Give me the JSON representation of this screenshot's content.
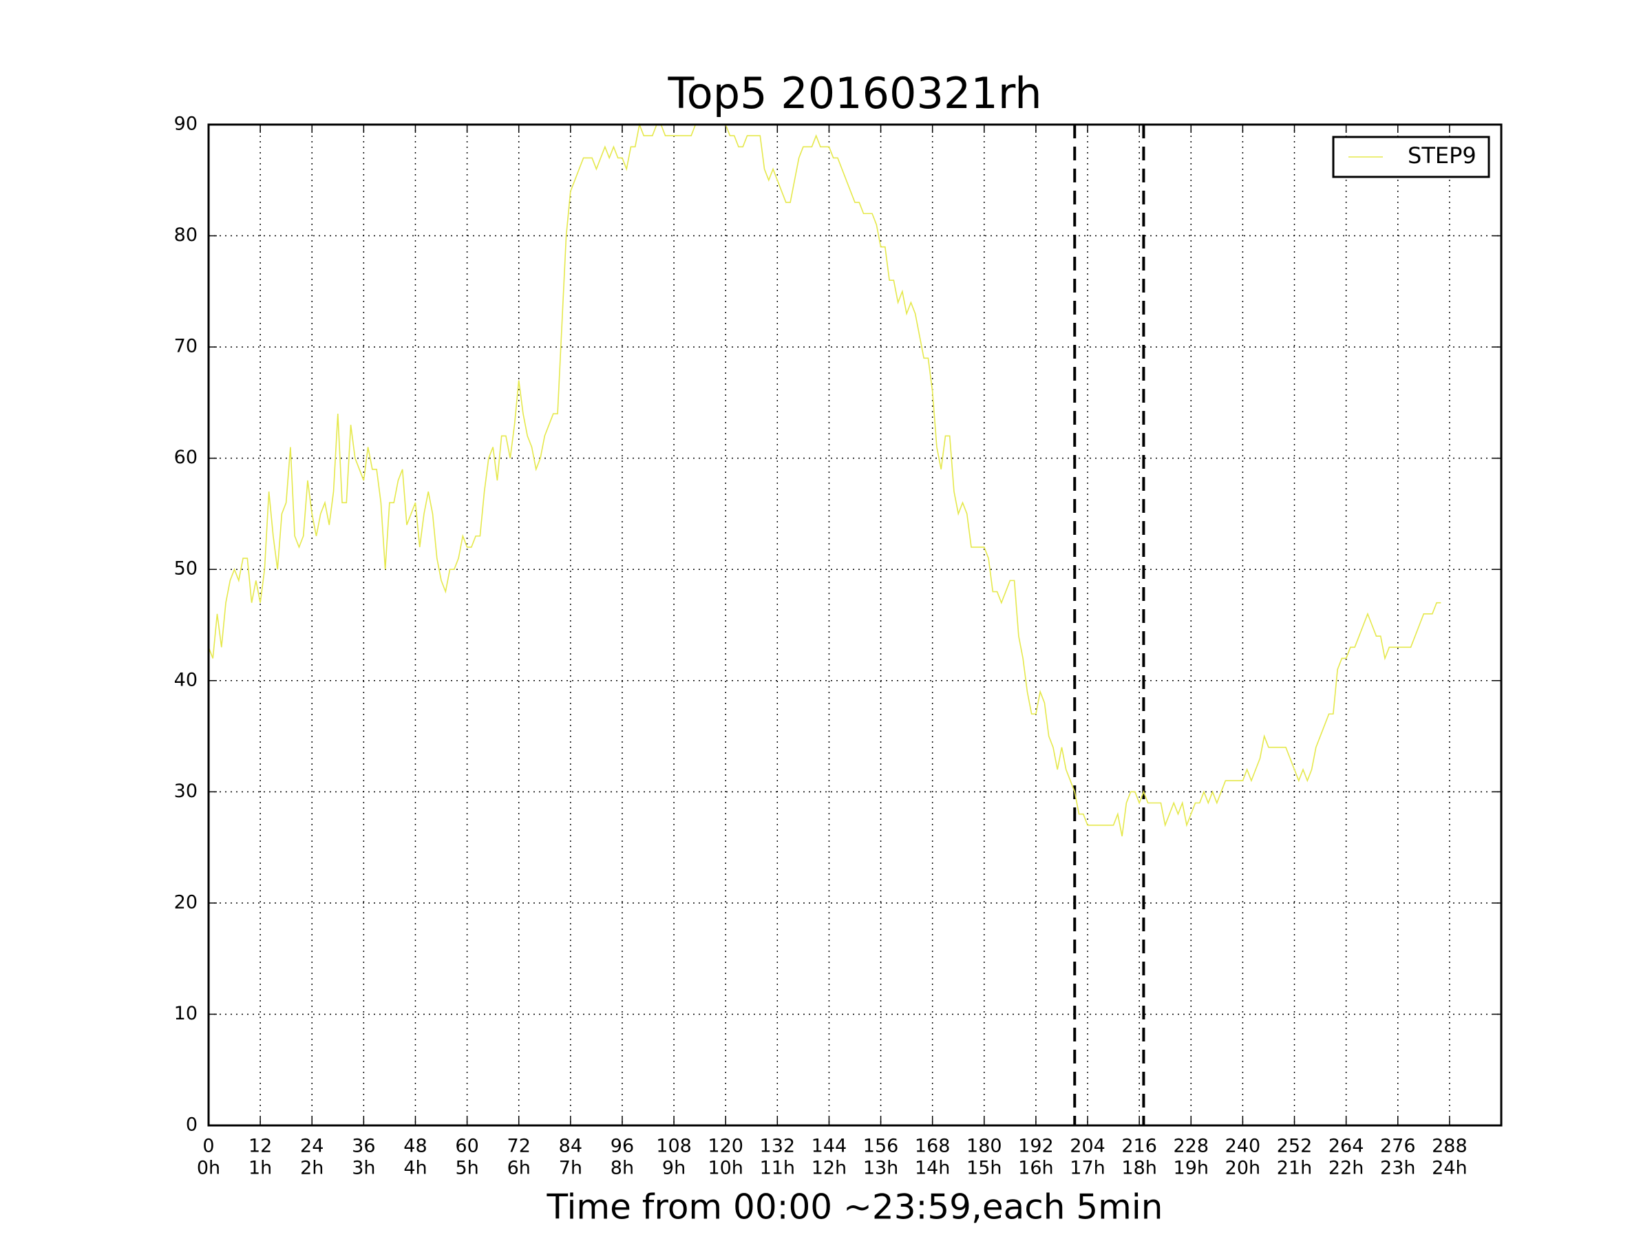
{
  "chart_data": {
    "type": "line",
    "title": "Top5 20160321rh",
    "xlabel": "Time from 00:00 ~23:59,each 5min",
    "series": [
      {
        "name": "STEP9",
        "color": "#e5e84a",
        "values": [
          43,
          42,
          46,
          43,
          47,
          49,
          50,
          49,
          51,
          51,
          47,
          49,
          47,
          50,
          57,
          53,
          50,
          55,
          56,
          61,
          53,
          52,
          53,
          58,
          55,
          53,
          55,
          56,
          54,
          57,
          64,
          56,
          56,
          63,
          60,
          59,
          58,
          61,
          59,
          59,
          56,
          50,
          56,
          56,
          58,
          59,
          54,
          55,
          56,
          52,
          55,
          57,
          55,
          51,
          49,
          48,
          50,
          50,
          51,
          53,
          52,
          52,
          53,
          53,
          57,
          60,
          61,
          58,
          62,
          62,
          60,
          63,
          67,
          64,
          62,
          61,
          59,
          60,
          62,
          63,
          64,
          64,
          72,
          80,
          84,
          85,
          86,
          87,
          87,
          87,
          86,
          87,
          88,
          87,
          88,
          87,
          87,
          86,
          88,
          88,
          90,
          89,
          89,
          89,
          90,
          90,
          89,
          89,
          89,
          89,
          89,
          89,
          89,
          90,
          90,
          90,
          90,
          90,
          90,
          90,
          90,
          89,
          89,
          88,
          88,
          89,
          89,
          89,
          89,
          86,
          85,
          86,
          85,
          84,
          83,
          83,
          85,
          87,
          88,
          88,
          88,
          89,
          88,
          88,
          88,
          87,
          87,
          86,
          85,
          84,
          83,
          83,
          82,
          82,
          82,
          81,
          79,
          79,
          76,
          76,
          74,
          75,
          73,
          74,
          73,
          71,
          69,
          69,
          66,
          61,
          59,
          62,
          62,
          57,
          55,
          56,
          55,
          52,
          52,
          52,
          52,
          51,
          48,
          48,
          47,
          48,
          49,
          49,
          44,
          42,
          39,
          37,
          37,
          39,
          38,
          35,
          34,
          32,
          34,
          32,
          31,
          30,
          28,
          28,
          27,
          27,
          27,
          27,
          27,
          27,
          27,
          28,
          26,
          29,
          30,
          30,
          29,
          30,
          29,
          29,
          29,
          29,
          27,
          28,
          29,
          28,
          29,
          27,
          28,
          29,
          29,
          30,
          29,
          30,
          29,
          30,
          31,
          31,
          31,
          31,
          31,
          32,
          31,
          32,
          33,
          35,
          34,
          34,
          34,
          34,
          34,
          33,
          32,
          31,
          32,
          31,
          32,
          34,
          35,
          36,
          37,
          37,
          41,
          42,
          42,
          43,
          43,
          44,
          45,
          46,
          45,
          44,
          44,
          42,
          43,
          43,
          43,
          43,
          43,
          43,
          44,
          45,
          46,
          46,
          46,
          47,
          47
        ]
      }
    ],
    "xlim": [
      0,
      300
    ],
    "xticks": [
      0,
      12,
      24,
      36,
      48,
      60,
      72,
      84,
      96,
      108,
      120,
      132,
      144,
      156,
      168,
      180,
      192,
      204,
      216,
      228,
      240,
      252,
      264,
      276,
      288
    ],
    "xtick_hours": [
      "0h",
      "1h",
      "2h",
      "3h",
      "4h",
      "5h",
      "6h",
      "7h",
      "8h",
      "9h",
      "10h",
      "11h",
      "12h",
      "13h",
      "14h",
      "15h",
      "16h",
      "17h",
      "18h",
      "19h",
      "20h",
      "21h",
      "22h",
      "23h",
      "24h"
    ],
    "ylim": [
      0,
      90
    ],
    "yticks": [
      0,
      10,
      20,
      30,
      40,
      50,
      60,
      70,
      80,
      90
    ],
    "vlines": [
      201,
      217
    ],
    "grid": true,
    "legend": "upper right"
  }
}
